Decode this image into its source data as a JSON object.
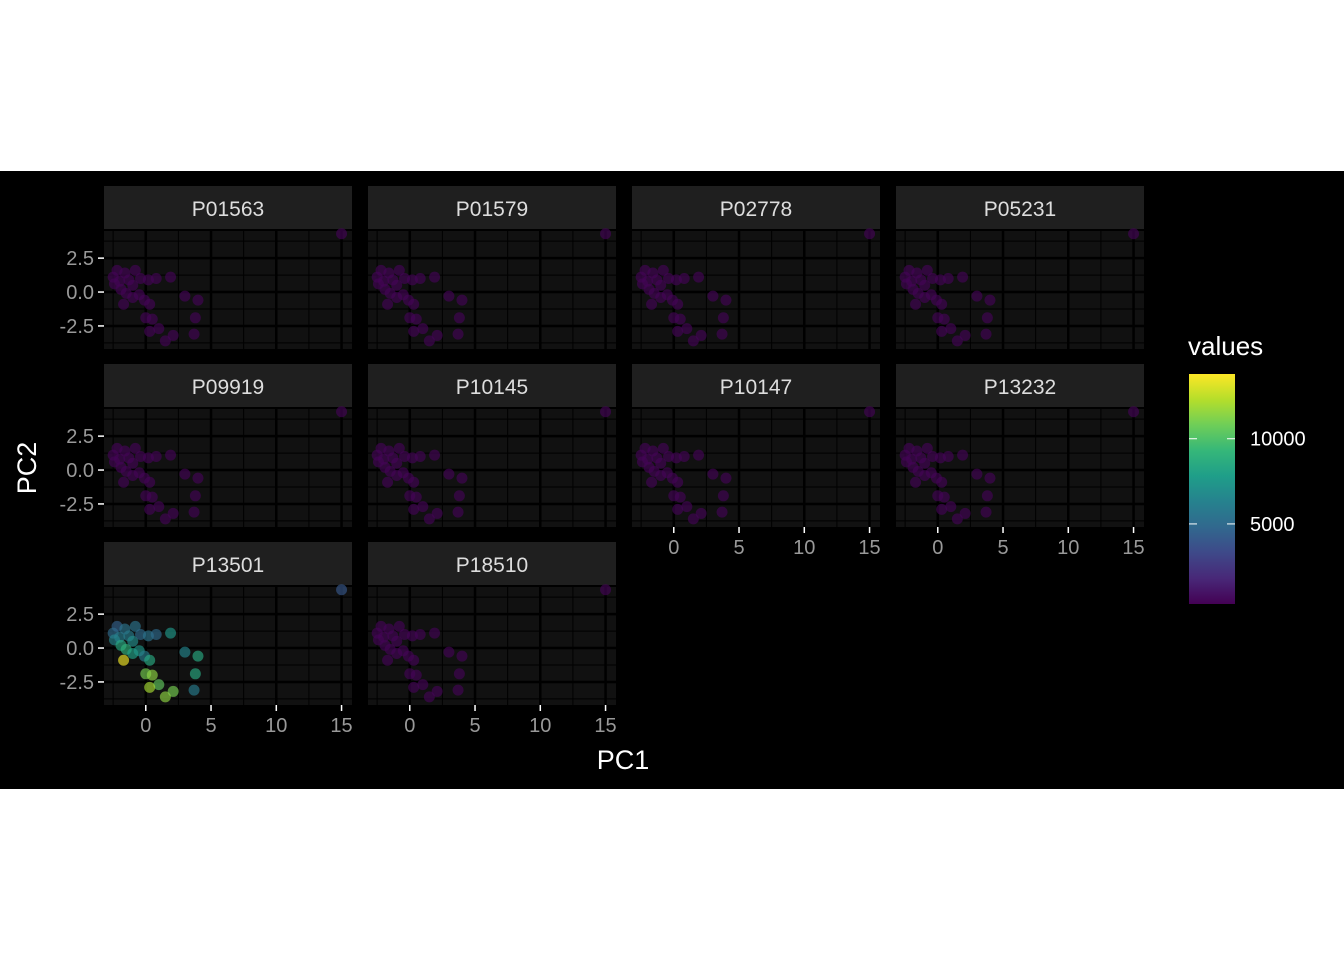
{
  "chart_data": {
    "type": "scatter",
    "facet_layout": "wrap",
    "xlabel": "PC1",
    "ylabel": "PC2",
    "xlim": [
      -3.2,
      15.8
    ],
    "ylim": [
      -4.2,
      4.5
    ],
    "x_ticks": [
      0,
      5,
      10,
      15
    ],
    "x_tick_labels": [
      "0",
      "5",
      "10",
      "15"
    ],
    "y_ticks": [
      2.5,
      0.0,
      -2.5
    ],
    "y_tick_labels": [
      "2.5",
      "0.0",
      "-2.5"
    ],
    "grid": true,
    "background": "#000000",
    "panel_background": "#111111",
    "strip_background": "#1f1f1f",
    "facets": [
      "P01563",
      "P01579",
      "P02778",
      "P05231",
      "P09919",
      "P10145",
      "P10147",
      "P13232",
      "P13501",
      "P18510"
    ],
    "points": [
      {
        "x": -2.2,
        "y": 1.6
      },
      {
        "x": -2.5,
        "y": 1.1
      },
      {
        "x": -2.0,
        "y": 0.8
      },
      {
        "x": -1.6,
        "y": 1.4
      },
      {
        "x": -1.3,
        "y": 0.9
      },
      {
        "x": -2.4,
        "y": 0.6
      },
      {
        "x": -1.9,
        "y": 0.2
      },
      {
        "x": -1.0,
        "y": 0.5
      },
      {
        "x": -0.8,
        "y": 1.6
      },
      {
        "x": -0.4,
        "y": 1.0
      },
      {
        "x": 0.2,
        "y": 0.9
      },
      {
        "x": 0.8,
        "y": 1.0
      },
      {
        "x": 1.9,
        "y": 1.1
      },
      {
        "x": -1.5,
        "y": -0.1
      },
      {
        "x": -1.0,
        "y": -0.4
      },
      {
        "x": -0.5,
        "y": -0.2
      },
      {
        "x": -0.1,
        "y": -0.6
      },
      {
        "x": 0.3,
        "y": -0.9
      },
      {
        "x": -1.7,
        "y": -0.9
      },
      {
        "x": 0.0,
        "y": -1.9
      },
      {
        "x": 0.5,
        "y": -2.0
      },
      {
        "x": 1.0,
        "y": -2.7
      },
      {
        "x": 0.3,
        "y": -2.9
      },
      {
        "x": 2.1,
        "y": -3.2
      },
      {
        "x": 1.5,
        "y": -3.6
      },
      {
        "x": 3.0,
        "y": -0.3
      },
      {
        "x": 4.0,
        "y": -0.6
      },
      {
        "x": 3.8,
        "y": -1.9
      },
      {
        "x": 3.7,
        "y": -3.1
      },
      {
        "x": 15.0,
        "y": 4.3
      }
    ],
    "series": [
      {
        "name": "P01563",
        "values": [
          400,
          400,
          400,
          400,
          400,
          400,
          400,
          400,
          400,
          400,
          400,
          400,
          400,
          400,
          400,
          400,
          400,
          400,
          400,
          400,
          400,
          400,
          400,
          400,
          400,
          400,
          400,
          400,
          400,
          400
        ]
      },
      {
        "name": "P01579",
        "values": [
          400,
          400,
          400,
          400,
          400,
          400,
          400,
          400,
          400,
          400,
          400,
          400,
          400,
          400,
          400,
          400,
          400,
          400,
          400,
          400,
          400,
          400,
          400,
          400,
          400,
          400,
          400,
          400,
          400,
          400
        ]
      },
      {
        "name": "P02778",
        "values": [
          400,
          400,
          400,
          400,
          400,
          400,
          400,
          400,
          400,
          400,
          400,
          400,
          400,
          400,
          400,
          400,
          400,
          400,
          400,
          400,
          400,
          400,
          400,
          400,
          400,
          400,
          400,
          400,
          400,
          400
        ]
      },
      {
        "name": "P05231",
        "values": [
          400,
          400,
          400,
          400,
          400,
          400,
          400,
          400,
          400,
          400,
          400,
          400,
          400,
          400,
          400,
          400,
          400,
          400,
          400,
          400,
          400,
          400,
          400,
          400,
          400,
          400,
          400,
          400,
          400,
          400
        ]
      },
      {
        "name": "P09919",
        "values": [
          400,
          400,
          400,
          400,
          400,
          400,
          400,
          400,
          400,
          400,
          400,
          400,
          400,
          400,
          400,
          400,
          400,
          400,
          400,
          400,
          400,
          400,
          400,
          400,
          400,
          400,
          400,
          400,
          400,
          400
        ]
      },
      {
        "name": "P10145",
        "values": [
          400,
          400,
          400,
          400,
          400,
          400,
          400,
          400,
          400,
          400,
          400,
          400,
          400,
          400,
          400,
          400,
          400,
          400,
          400,
          400,
          400,
          400,
          400,
          400,
          400,
          400,
          400,
          400,
          400,
          400
        ]
      },
      {
        "name": "P10147",
        "values": [
          400,
          400,
          400,
          400,
          400,
          400,
          400,
          400,
          400,
          400,
          400,
          400,
          400,
          400,
          400,
          400,
          400,
          400,
          400,
          400,
          400,
          400,
          400,
          400,
          400,
          400,
          400,
          400,
          400,
          400
        ]
      },
      {
        "name": "P13232",
        "values": [
          400,
          400,
          400,
          400,
          400,
          400,
          400,
          400,
          400,
          400,
          400,
          400,
          400,
          400,
          400,
          400,
          400,
          400,
          400,
          400,
          400,
          400,
          400,
          400,
          400,
          400,
          400,
          400,
          400,
          400
        ]
      },
      {
        "name": "P13501",
        "values": [
          4500,
          5000,
          6000,
          5500,
          6000,
          6500,
          8500,
          7000,
          5500,
          5000,
          5500,
          5000,
          7500,
          9000,
          8000,
          7500,
          6000,
          8500,
          13500,
          11000,
          11500,
          10500,
          12000,
          11000,
          11500,
          6500,
          8500,
          8500,
          6000,
          4000
        ]
      },
      {
        "name": "P18510",
        "values": [
          400,
          400,
          400,
          400,
          400,
          400,
          400,
          400,
          400,
          400,
          400,
          400,
          400,
          400,
          400,
          400,
          400,
          400,
          400,
          400,
          400,
          400,
          400,
          400,
          400,
          400,
          400,
          400,
          400,
          400
        ]
      }
    ],
    "legend": {
      "title": "values",
      "position": "right",
      "range": [
        300,
        13800
      ],
      "ticks": [
        5000,
        10000
      ],
      "tick_labels": [
        "5000",
        "10000"
      ],
      "palette": "viridis"
    }
  }
}
